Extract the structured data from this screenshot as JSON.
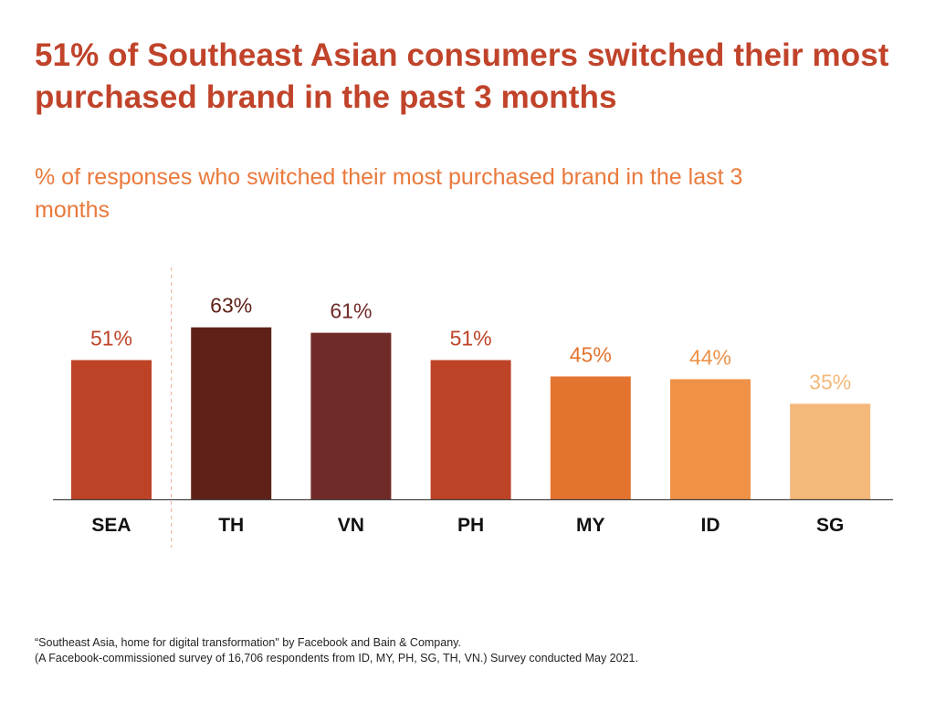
{
  "header": {
    "title": "51% of Southeast Asian consumers switched their most purchased brand in the past 3 months",
    "subtitle": "% of responses who switched their most purchased brand in the last 3 months"
  },
  "chart_data": {
    "type": "bar",
    "categories": [
      "SEA",
      "TH",
      "VN",
      "PH",
      "MY",
      "ID",
      "SG"
    ],
    "values": [
      51,
      63,
      61,
      51,
      45,
      44,
      35
    ],
    "data_labels": [
      "51%",
      "63%",
      "61%",
      "51%",
      "45%",
      "44%",
      "35%"
    ],
    "colors": [
      "#bd4327",
      "#5e2118",
      "#702a28",
      "#bd4327",
      "#e3742f",
      "#ef9146",
      "#f3b87a"
    ],
    "title": "",
    "xlabel": "",
    "ylabel": "",
    "ylim": [
      0,
      100
    ],
    "grid": false,
    "legend": "none",
    "separator_after_category": "SEA"
  },
  "footnote": {
    "line1": "“Southeast Asia, home for digital transformation\" by Facebook and Bain & Company.",
    "line2": "(A Facebook-commissioned survey of 16,706 respondents from ID, MY, PH, SG, TH, VN.) Survey conducted May 2021."
  },
  "colors": {
    "title": "#c0432a",
    "subtitle": "#e9793b",
    "axis": "#444444",
    "separator": "#f2b89c",
    "category_label": "#111111"
  }
}
